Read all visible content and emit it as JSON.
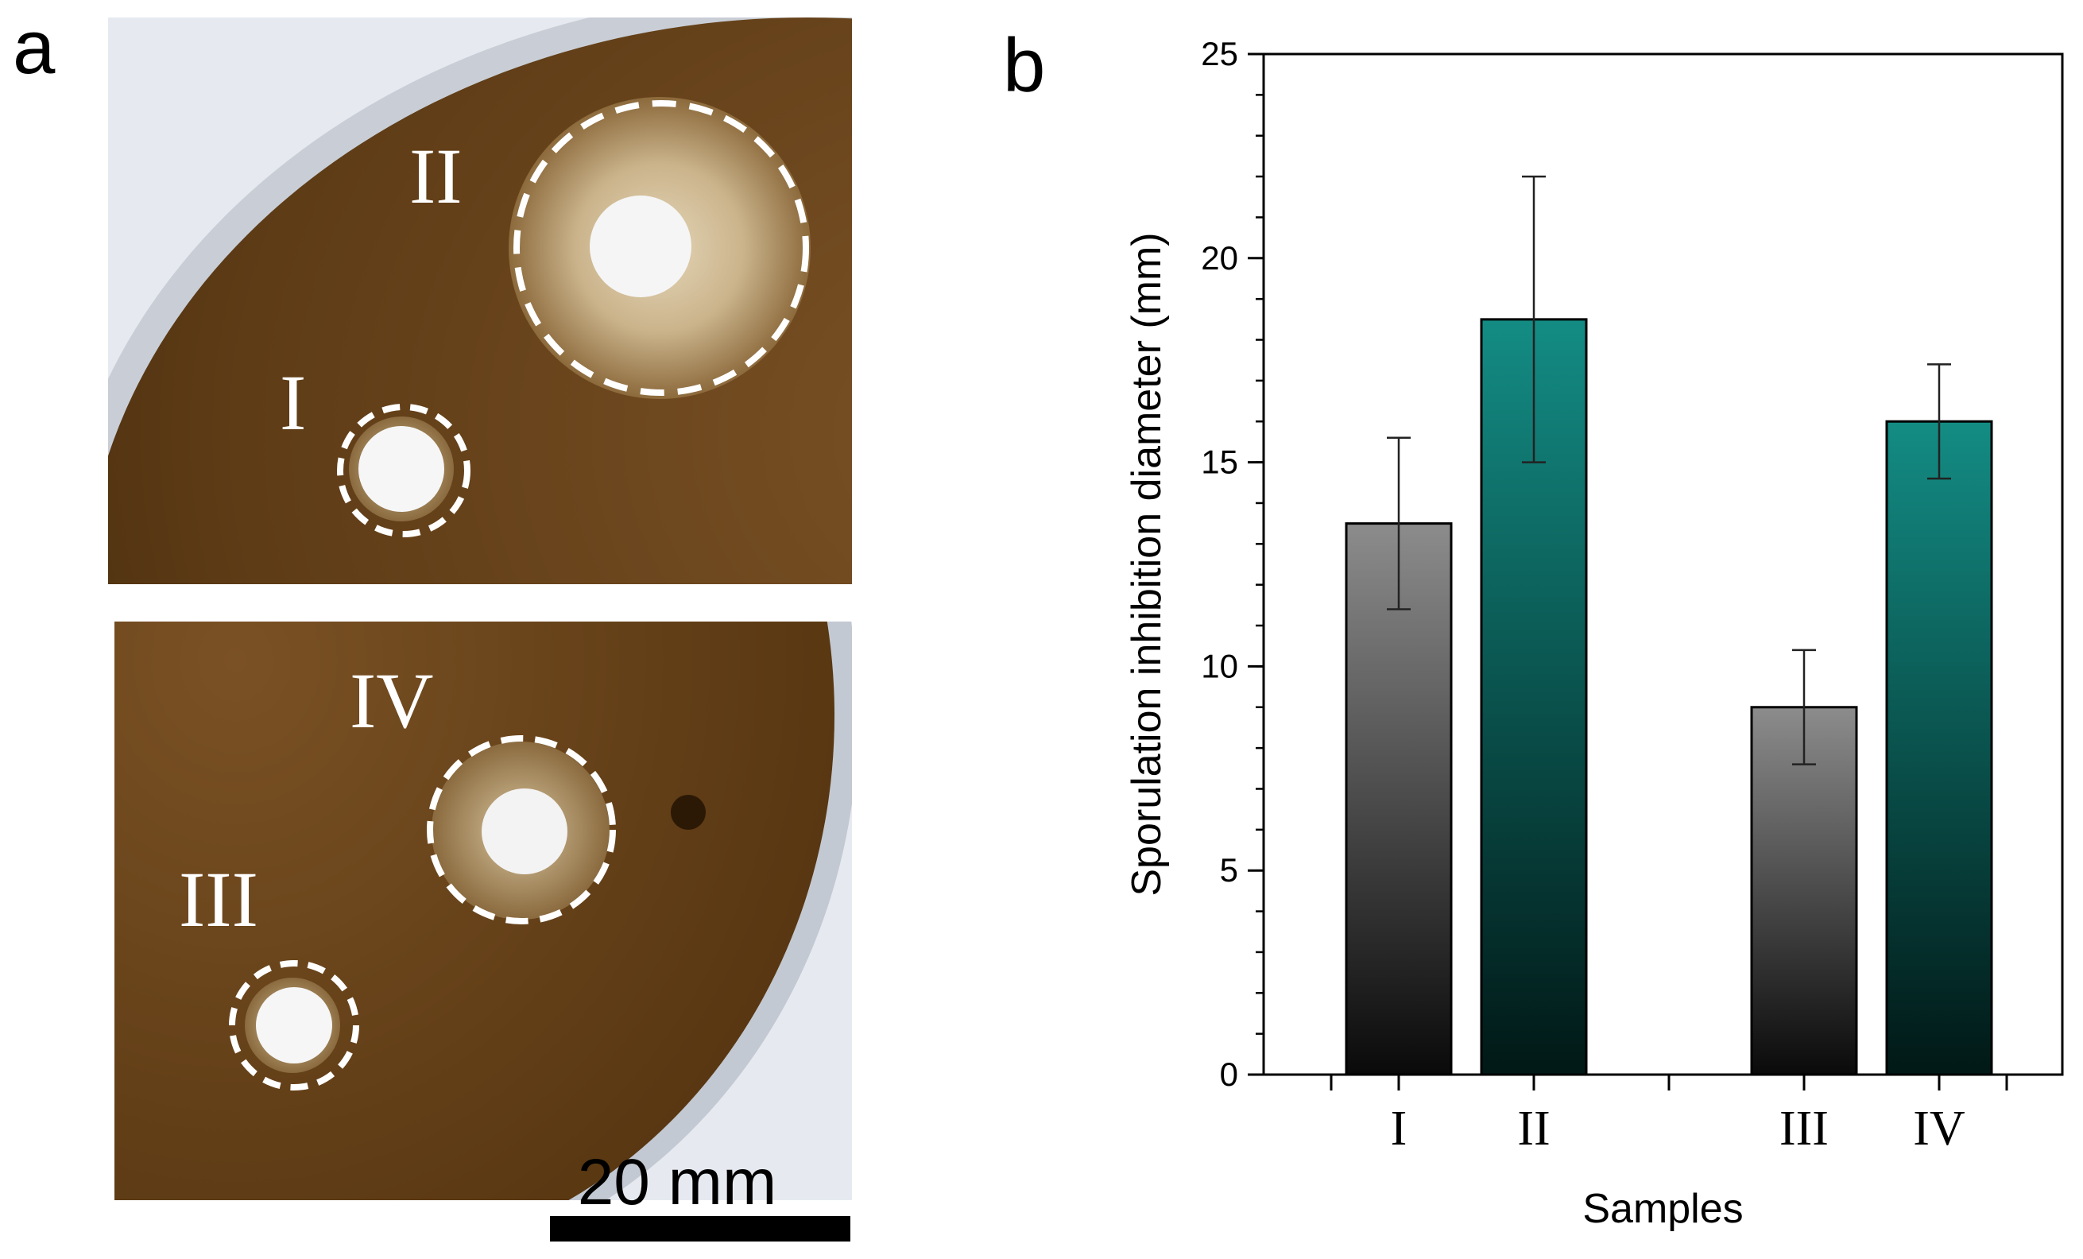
{
  "panel_a": {
    "letter": "a",
    "plate_labels": [
      "I",
      "II",
      "III",
      "IV"
    ],
    "scale_bar_label": "20 mm"
  },
  "panel_b": {
    "letter": "b"
  },
  "chart_data": {
    "type": "bar",
    "ylabel": "Sporulation inhibition diameter (mm)",
    "xlabel": "Samples",
    "categories": [
      "I",
      "II",
      "III",
      "IV"
    ],
    "values": [
      13.5,
      18.5,
      9.0,
      16.0
    ],
    "errors": [
      2.1,
      3.5,
      1.4,
      1.4
    ],
    "ylim": [
      0,
      25
    ],
    "yticks": [
      0,
      5,
      10,
      15,
      20,
      25
    ],
    "y_minor_step": 1,
    "grid": false,
    "legend": "none",
    "colors": {
      "gray_top": "#8c8c8c",
      "gray_bottom": "#0a0a0a",
      "teal_top": "#138c84",
      "teal_bottom": "#011816"
    },
    "bar_color_keys": [
      "gray",
      "teal",
      "gray",
      "teal"
    ]
  },
  "colors": {
    "agar_dark": "#5a3a14",
    "agar_mid": "#7a5226",
    "halo": "#c4ac82",
    "disc": "#f4f4f4",
    "background": "#e8ecf2"
  }
}
